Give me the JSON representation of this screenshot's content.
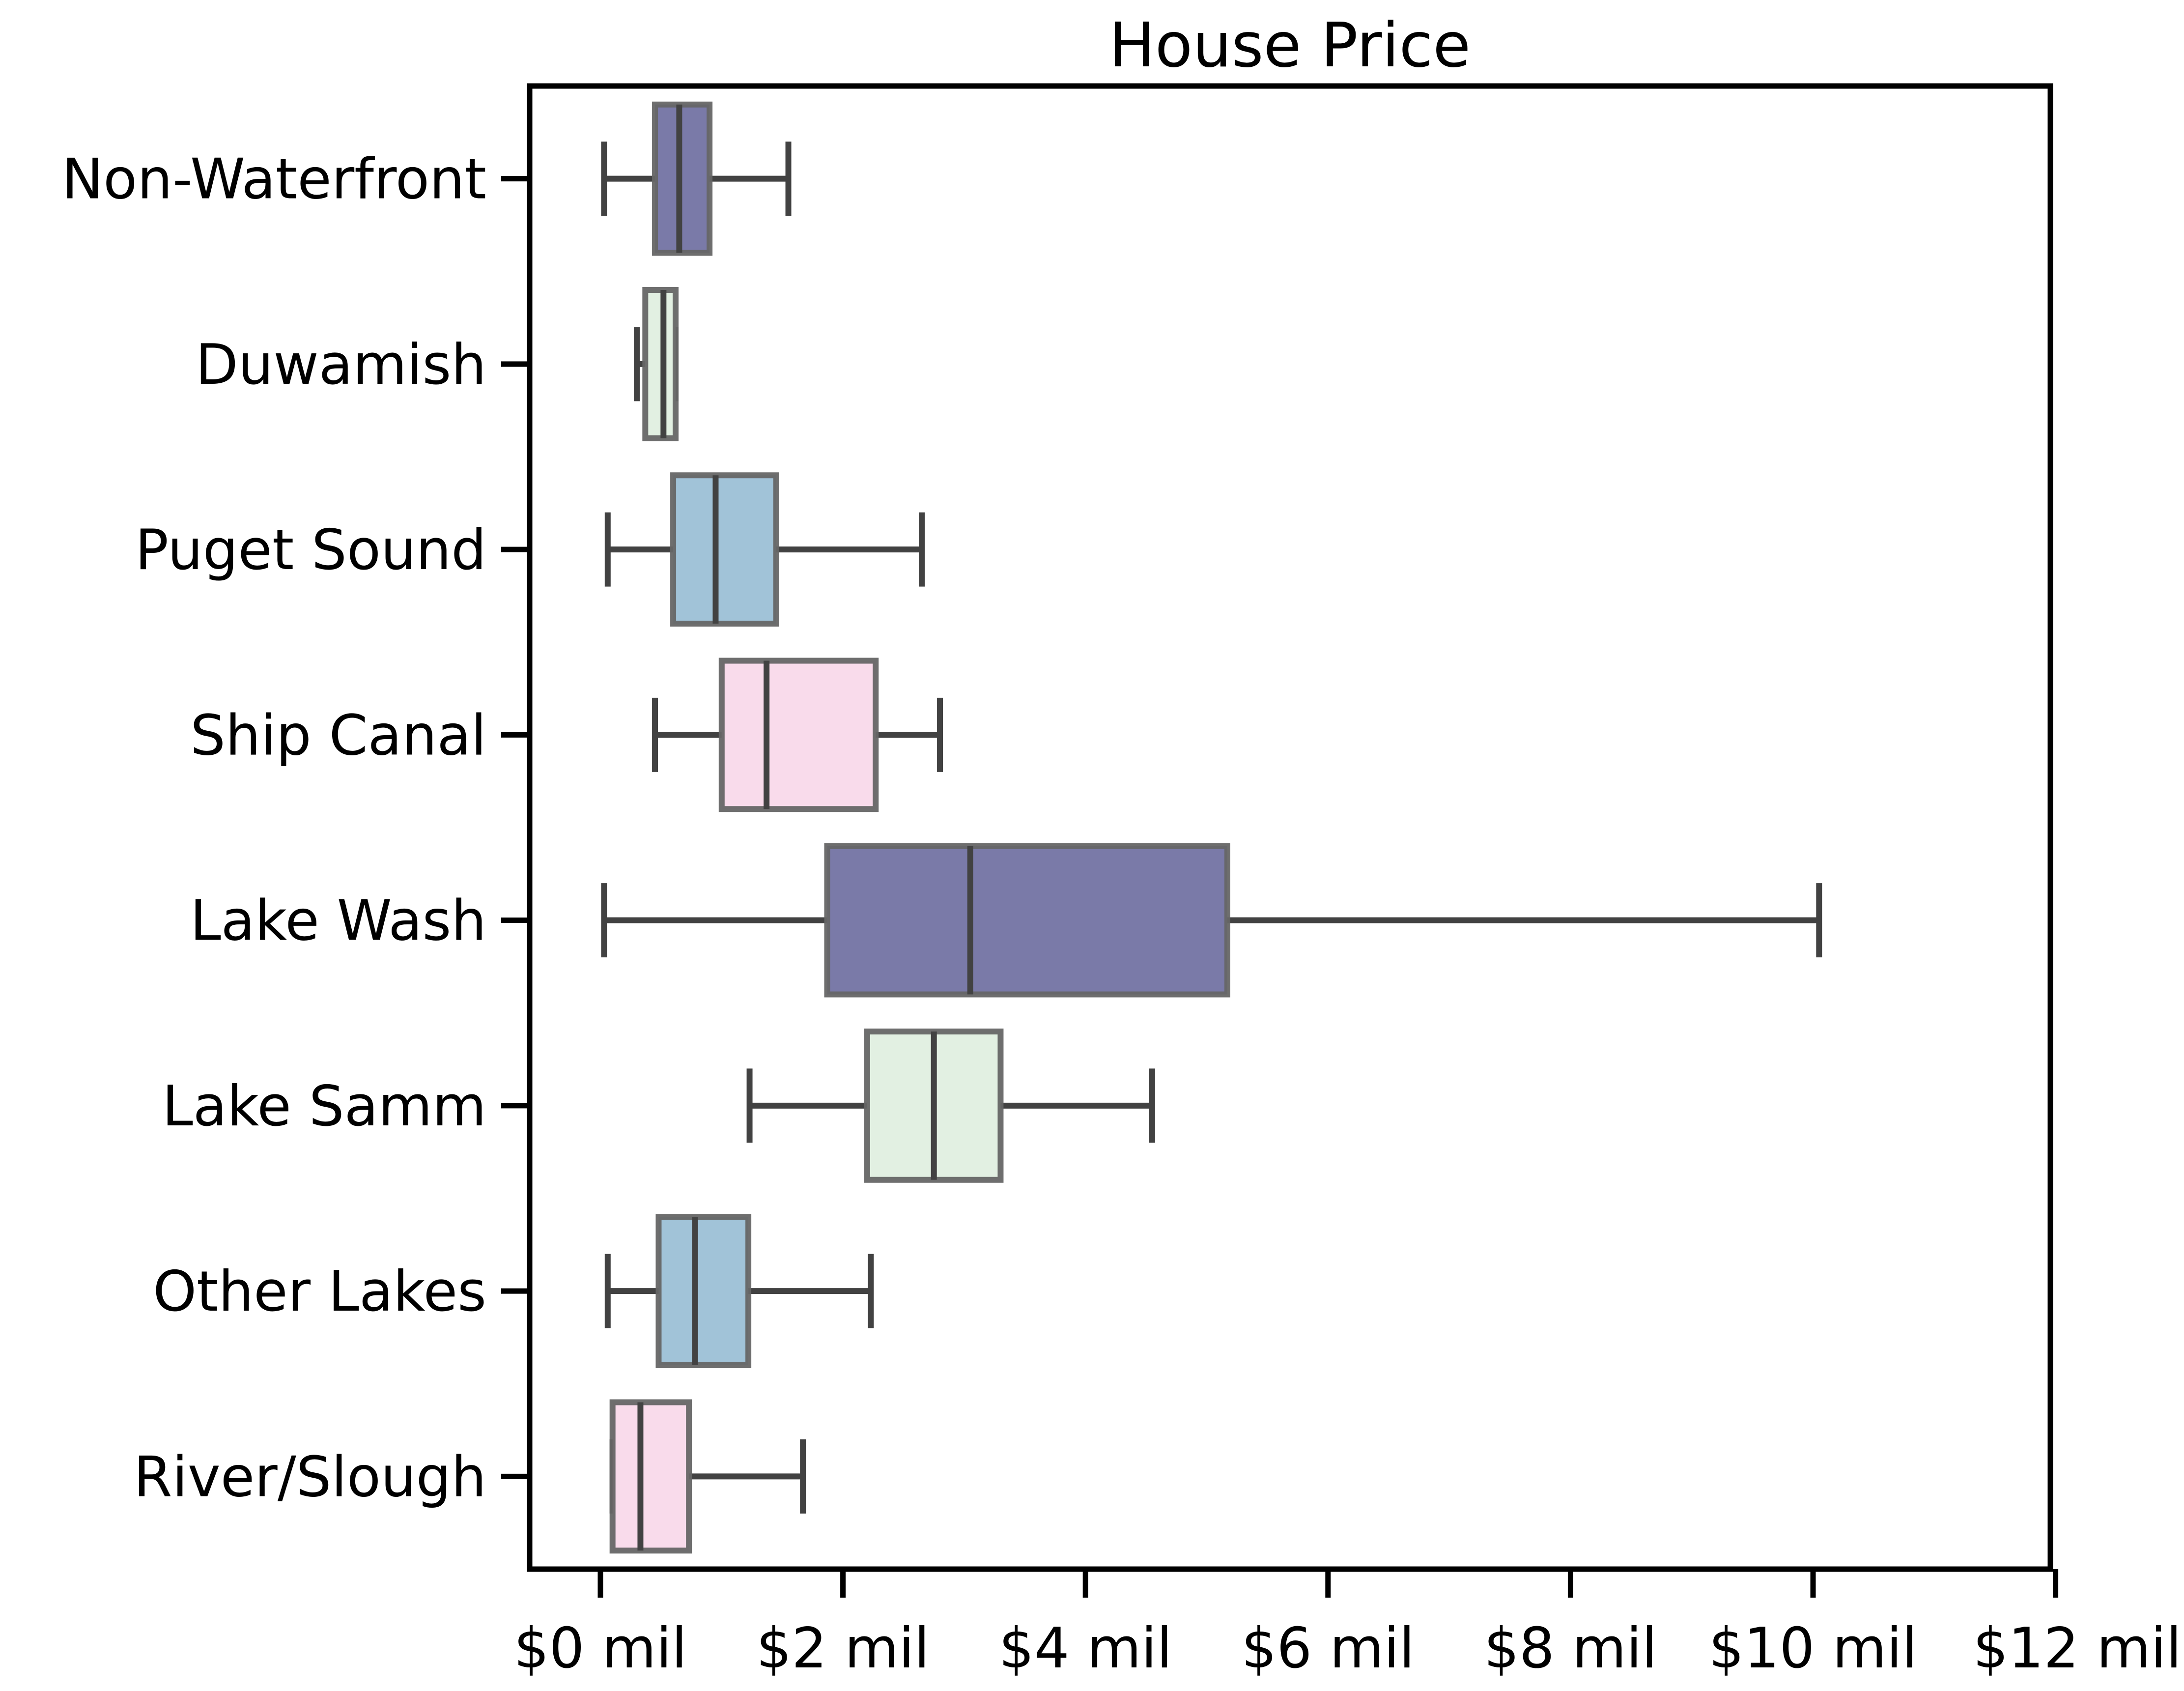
{
  "chart_data": {
    "type": "boxplot",
    "orientation": "horizontal",
    "title": "House Price",
    "xlabel": "",
    "ylabel": "",
    "xlim": [
      -0.3,
      12.0
    ],
    "x_ticks": [
      {
        "value": 0,
        "label": "$0 mil"
      },
      {
        "value": 2,
        "label": "$2 mil"
      },
      {
        "value": 4,
        "label": "$4 mil"
      },
      {
        "value": 6,
        "label": "$6 mil"
      },
      {
        "value": 8,
        "label": "$8 mil"
      },
      {
        "value": 10,
        "label": "$10 mil"
      },
      {
        "value": 12,
        "label": "$12 mil"
      }
    ],
    "grid": false,
    "legend": "none",
    "categories": [
      "Non-Waterfront",
      "Duwamish",
      "Puget Sound",
      "Ship Canal",
      "Lake Wash",
      "Lake Samm",
      "Other Lakes",
      "River/Slough"
    ],
    "boxes": [
      {
        "category": "Non-Waterfront",
        "whisker_low": 0.03,
        "q1": 0.45,
        "median": 0.65,
        "q3": 0.9,
        "whisker_high": 1.55,
        "color": "#7a7aa8"
      },
      {
        "category": "Duwamish",
        "whisker_low": 0.3,
        "q1": 0.37,
        "median": 0.52,
        "q3": 0.62,
        "whisker_high": 0.62,
        "color": "#e2f0e2"
      },
      {
        "category": "Puget Sound",
        "whisker_low": 0.06,
        "q1": 0.6,
        "median": 0.95,
        "q3": 1.45,
        "whisker_high": 2.65,
        "color": "#a1c3d8"
      },
      {
        "category": "Ship Canal",
        "whisker_low": 0.45,
        "q1": 1.0,
        "median": 1.37,
        "q3": 2.27,
        "whisker_high": 2.8,
        "color": "#f9dbeb"
      },
      {
        "category": "Lake Wash",
        "whisker_low": 0.03,
        "q1": 1.87,
        "median": 3.05,
        "q3": 5.17,
        "whisker_high": 10.05,
        "color": "#7a7aa8"
      },
      {
        "category": "Lake Samm",
        "whisker_low": 1.23,
        "q1": 2.2,
        "median": 2.75,
        "q3": 3.3,
        "whisker_high": 4.55,
        "color": "#e2f0e2"
      },
      {
        "category": "Other Lakes",
        "whisker_low": 0.06,
        "q1": 0.48,
        "median": 0.78,
        "q3": 1.22,
        "whisker_high": 2.23,
        "color": "#a1c3d8"
      },
      {
        "category": "River/Slough",
        "whisker_low": 0.1,
        "q1": 0.1,
        "median": 0.33,
        "q3": 0.73,
        "whisker_high": 1.67,
        "color": "#f9dbeb"
      }
    ]
  }
}
